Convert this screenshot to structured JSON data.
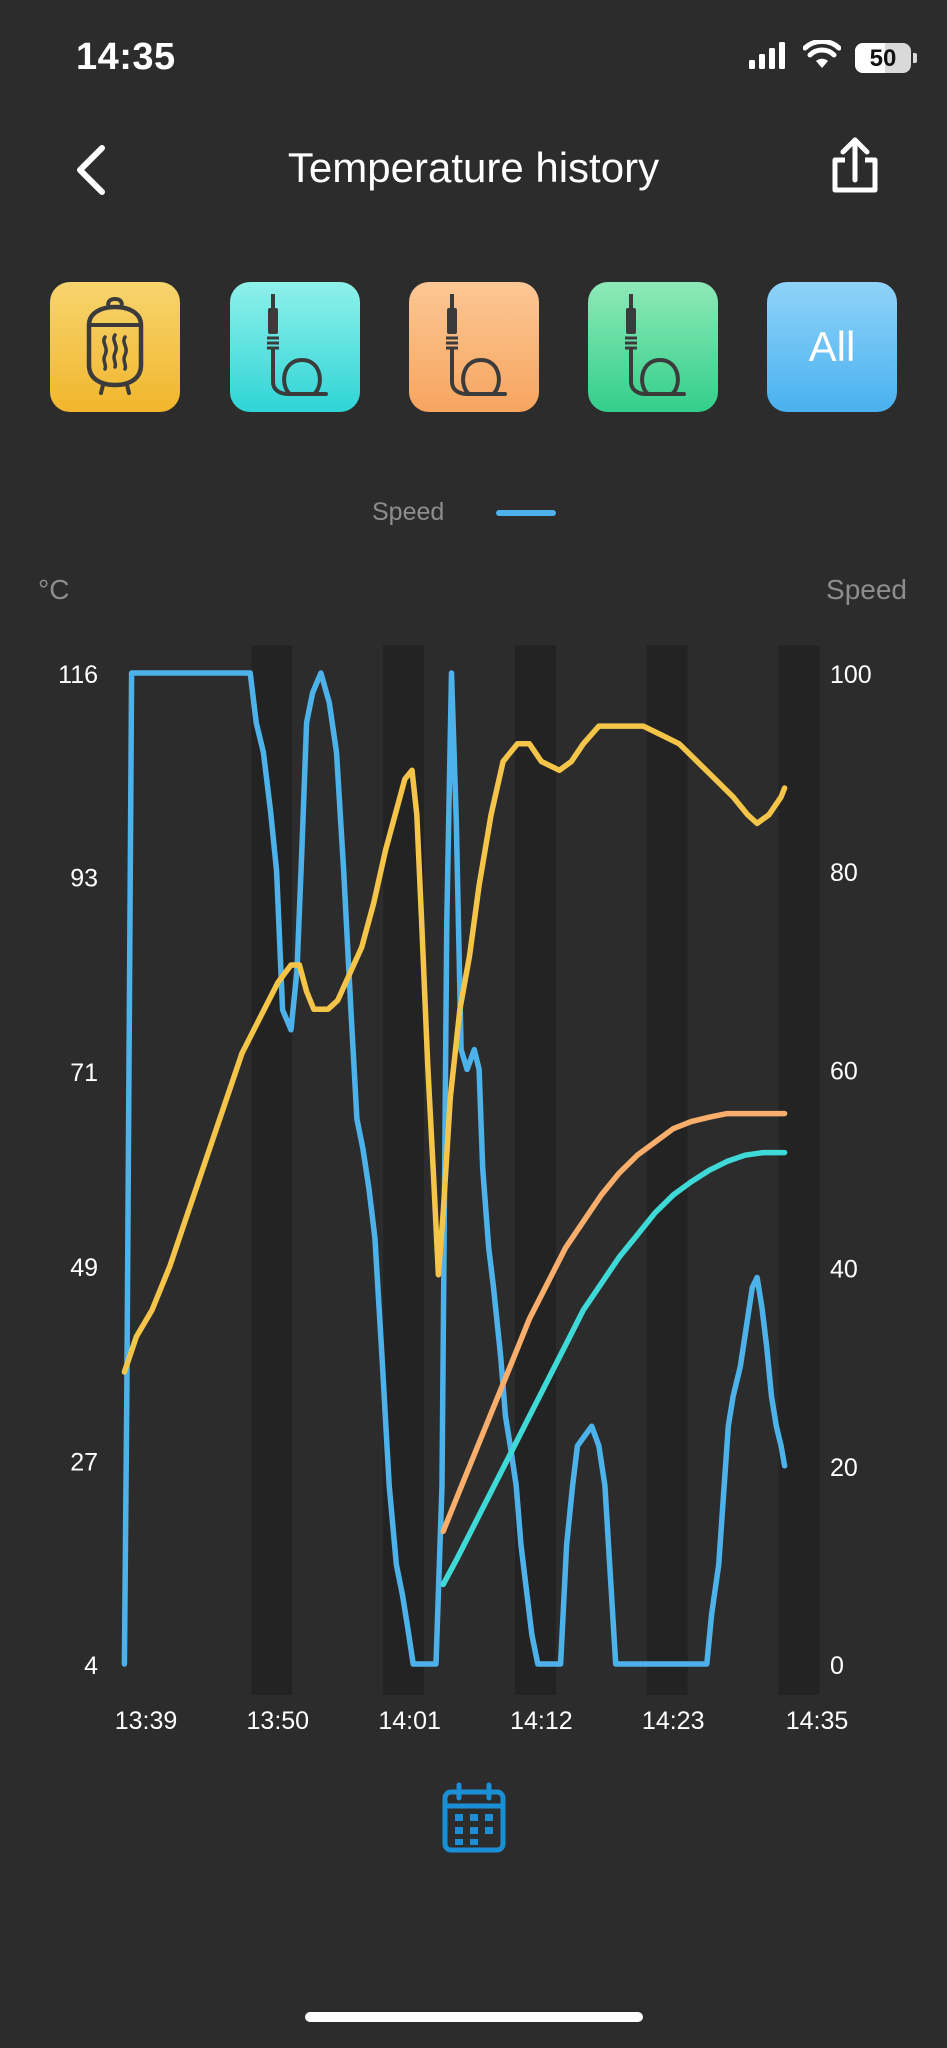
{
  "status_bar": {
    "time": "14:35",
    "battery": "50",
    "icons": [
      "cellular-signal-icon",
      "wifi-icon",
      "battery-icon"
    ]
  },
  "nav": {
    "title": "Temperature history",
    "back_icon": "chevron-left-icon",
    "share_icon": "share-icon"
  },
  "probe_tiles": [
    {
      "name": "ambient",
      "icon": "grill-icon",
      "color": "#f4c23e"
    },
    {
      "name": "probe-1",
      "icon": "probe-cable-icon",
      "color": "#3fd9d8"
    },
    {
      "name": "probe-2",
      "icon": "probe-cable-icon",
      "color": "#f9ae6b"
    },
    {
      "name": "probe-3",
      "icon": "probe-cable-icon",
      "color": "#3dd494"
    },
    {
      "name": "all",
      "label": "All",
      "color": "#56b8f1"
    }
  ],
  "legend": {
    "label": "Speed",
    "color": "#4db2ea"
  },
  "calendar_icon": "calendar-icon",
  "chart_data": {
    "type": "line",
    "y_left_unit": "°C",
    "y_right_unit": "Speed",
    "y_left_ticks": [
      "116",
      "93",
      "71",
      "49",
      "27",
      "4"
    ],
    "y_right_ticks": [
      "100",
      "80",
      "60",
      "40",
      "20",
      "0"
    ],
    "ylim_left": [
      4,
      116
    ],
    "ylim_right": [
      0,
      100
    ],
    "x_ticks": [
      "13:39",
      "13:50",
      "14:01",
      "14:12",
      "14:23",
      "14:35"
    ],
    "x_unit": "minutes since 13:39",
    "x_tick_values": [
      0,
      11,
      22,
      33,
      44,
      56
    ],
    "xlim": [
      0,
      56
    ],
    "shaded_bands": [
      [
        8.8,
        12.2
      ],
      [
        19.8,
        23.2
      ],
      [
        30.8,
        34.2
      ],
      [
        41.8,
        45.2
      ],
      [
        52.8,
        56.2
      ]
    ],
    "grid": false,
    "series": [
      {
        "axis": "right",
        "color": "#4db2ea",
        "points": [
          [
            -1.8,
            0
          ],
          [
            -1.6,
            27
          ],
          [
            -1.2,
            100
          ],
          [
            -0.6,
            100
          ],
          [
            2,
            100
          ],
          [
            6,
            100
          ],
          [
            8.7,
            100
          ],
          [
            9.2,
            95
          ],
          [
            9.8,
            92
          ],
          [
            10.4,
            86
          ],
          [
            10.9,
            80
          ],
          [
            11.4,
            66
          ],
          [
            12.1,
            64
          ],
          [
            12.6,
            70
          ],
          [
            13,
            82
          ],
          [
            13.4,
            95
          ],
          [
            13.9,
            98
          ],
          [
            14.6,
            100
          ],
          [
            15.3,
            97
          ],
          [
            15.9,
            92
          ],
          [
            16.5,
            80
          ],
          [
            17.1,
            66
          ],
          [
            17.6,
            55
          ],
          [
            18.1,
            52
          ],
          [
            18.6,
            48
          ],
          [
            19.1,
            43
          ],
          [
            19.7,
            31
          ],
          [
            20.3,
            18
          ],
          [
            20.9,
            10
          ],
          [
            21.4,
            7
          ],
          [
            21.8,
            4
          ],
          [
            22.3,
            0
          ],
          [
            23.5,
            0
          ],
          [
            24.2,
            0
          ],
          [
            24.7,
            18
          ],
          [
            25.1,
            75
          ],
          [
            25.5,
            100
          ],
          [
            25.9,
            85
          ],
          [
            26.3,
            62
          ],
          [
            26.8,
            60
          ],
          [
            27.4,
            62
          ],
          [
            27.8,
            60
          ],
          [
            28.1,
            50
          ],
          [
            28.6,
            42
          ],
          [
            29,
            38
          ],
          [
            29.6,
            31
          ],
          [
            30,
            25
          ],
          [
            30.4,
            22
          ],
          [
            30.9,
            18
          ],
          [
            31.3,
            12
          ],
          [
            31.7,
            8
          ],
          [
            32.2,
            3
          ],
          [
            32.7,
            0
          ],
          [
            34,
            0
          ],
          [
            34.6,
            0
          ],
          [
            35.1,
            12
          ],
          [
            35.6,
            18
          ],
          [
            36,
            22
          ],
          [
            36.6,
            23
          ],
          [
            37.2,
            24
          ],
          [
            37.8,
            22
          ],
          [
            38.3,
            18
          ],
          [
            38.8,
            8
          ],
          [
            39.2,
            0
          ],
          [
            44,
            0
          ],
          [
            46.8,
            0
          ],
          [
            47.2,
            5
          ],
          [
            47.8,
            10
          ],
          [
            48.2,
            17
          ],
          [
            48.6,
            24
          ],
          [
            49,
            27
          ],
          [
            49.6,
            30
          ],
          [
            50.1,
            34
          ],
          [
            50.6,
            38
          ],
          [
            51,
            39
          ],
          [
            51.4,
            36
          ],
          [
            51.8,
            32
          ],
          [
            52.2,
            27
          ],
          [
            52.6,
            24
          ],
          [
            53,
            22
          ],
          [
            53.3,
            20
          ]
        ]
      },
      {
        "axis": "left",
        "color": "#f5c54a",
        "points": [
          [
            -1.8,
            37
          ],
          [
            -0.8,
            41
          ],
          [
            0.5,
            44
          ],
          [
            2,
            49
          ],
          [
            3.5,
            55
          ],
          [
            5,
            61
          ],
          [
            6.5,
            67
          ],
          [
            8,
            73
          ],
          [
            9.5,
            77
          ],
          [
            11,
            81
          ],
          [
            12.1,
            83
          ],
          [
            12.8,
            83
          ],
          [
            13.4,
            80
          ],
          [
            14,
            78
          ],
          [
            15.2,
            78
          ],
          [
            16,
            79
          ],
          [
            17,
            82
          ],
          [
            18,
            85
          ],
          [
            19,
            90
          ],
          [
            20,
            96
          ],
          [
            20.8,
            100
          ],
          [
            21.6,
            104
          ],
          [
            22.2,
            105
          ],
          [
            22.6,
            100
          ],
          [
            23,
            88
          ],
          [
            23.5,
            72
          ],
          [
            24,
            59
          ],
          [
            24.4,
            48
          ],
          [
            24.8,
            55
          ],
          [
            25.4,
            68
          ],
          [
            26.2,
            78
          ],
          [
            27,
            84
          ],
          [
            27.8,
            92
          ],
          [
            28.8,
            100
          ],
          [
            29.8,
            106
          ],
          [
            31,
            108
          ],
          [
            32,
            108
          ],
          [
            33,
            106
          ],
          [
            34.5,
            105
          ],
          [
            35.5,
            106
          ],
          [
            36.5,
            108
          ],
          [
            37.8,
            110
          ],
          [
            39.5,
            110
          ],
          [
            41.5,
            110
          ],
          [
            43,
            109
          ],
          [
            44.5,
            108
          ],
          [
            46,
            106
          ],
          [
            47.5,
            104
          ],
          [
            49,
            102
          ],
          [
            50.2,
            100
          ],
          [
            51,
            99
          ],
          [
            52,
            100
          ],
          [
            53,
            102
          ],
          [
            53.3,
            103
          ]
        ]
      },
      {
        "axis": "left",
        "color": "#f9ae6b",
        "points": [
          [
            24.8,
            19
          ],
          [
            26,
            23
          ],
          [
            27.5,
            28
          ],
          [
            29,
            33
          ],
          [
            30.5,
            38
          ],
          [
            32,
            43
          ],
          [
            33.5,
            47
          ],
          [
            35,
            51
          ],
          [
            36.5,
            54
          ],
          [
            38,
            57
          ],
          [
            39.5,
            59.5
          ],
          [
            41,
            61.5
          ],
          [
            42.5,
            63
          ],
          [
            44,
            64.5
          ],
          [
            45.5,
            65.3
          ],
          [
            47,
            65.8
          ],
          [
            48.5,
            66.2
          ],
          [
            50,
            66.2
          ],
          [
            51.5,
            66.2
          ],
          [
            53.3,
            66.2
          ]
        ]
      },
      {
        "axis": "left",
        "color": "#3fd9d8",
        "points": [
          [
            24.8,
            13
          ],
          [
            26,
            16
          ],
          [
            27.5,
            20
          ],
          [
            29,
            24
          ],
          [
            30.5,
            28
          ],
          [
            32,
            32
          ],
          [
            33.5,
            36
          ],
          [
            35,
            40
          ],
          [
            36.5,
            44
          ],
          [
            38,
            47
          ],
          [
            39.5,
            50
          ],
          [
            41,
            52.5
          ],
          [
            42.5,
            55
          ],
          [
            44,
            57
          ],
          [
            45.5,
            58.5
          ],
          [
            47,
            59.8
          ],
          [
            48.5,
            60.8
          ],
          [
            50,
            61.5
          ],
          [
            51.5,
            61.8
          ],
          [
            53.3,
            61.8
          ]
        ]
      }
    ]
  }
}
